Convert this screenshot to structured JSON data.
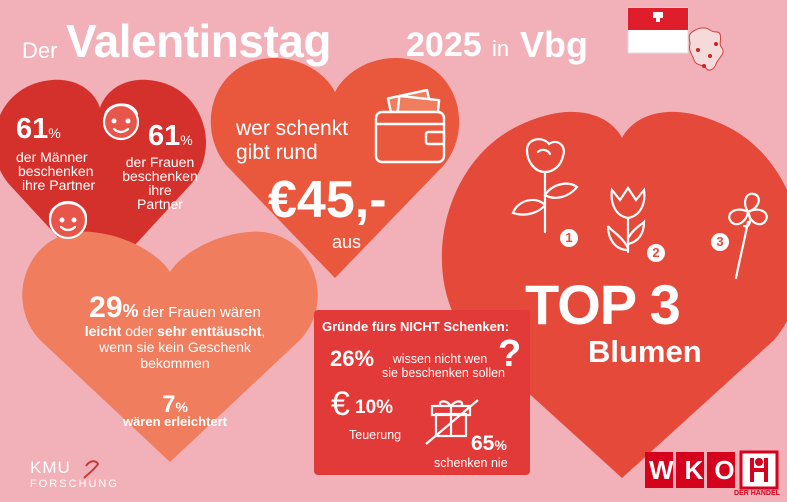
{
  "header": {
    "prefix": "Der",
    "title": "Valentinstag",
    "year": "2025",
    "in": "in",
    "region": "Vbg"
  },
  "heart1": {
    "men_pct": "61",
    "men_pct_sign": "%",
    "men_text": [
      "der Männer",
      "beschenken",
      "ihre Partner"
    ],
    "women_pct": "61",
    "women_pct_sign": "%",
    "women_text": [
      "der Frauen",
      "beschenken",
      "ihre",
      "Partner"
    ]
  },
  "heart2": {
    "line1": "wer schenkt",
    "line2": "gibt rund",
    "amount": "€45,-",
    "suffix": "aus"
  },
  "heart3": {
    "pct": "29",
    "pct_sign": "%",
    "text1": "der Frauen wären",
    "text2a": "leicht",
    "text2b": "oder",
    "text2c": "sehr enttäuscht",
    "text2d": ",",
    "text3": "wenn sie kein Geschenk",
    "text4": "bekommen",
    "pct2": "7",
    "pct2_sign": "%",
    "text5": "wären erleichtert"
  },
  "top3": {
    "title": "TOP 3",
    "subtitle": "Blumen",
    "ranks": [
      "1",
      "2",
      "3"
    ]
  },
  "reasons": {
    "title": "Gründe fürs NICHT Schenken:",
    "r1_pct": "26%",
    "r1_text": [
      "wissen nicht wen",
      "sie beschenken sollen"
    ],
    "r2_pct": "10%",
    "r2_text": "Teuerung",
    "r3_pct": "65",
    "r3_sign": "%",
    "r3_text": "schenken nie"
  },
  "footer": {
    "kmu_line1": "KMU",
    "kmu_line2": "FORSCHUNG",
    "wko": "WKO",
    "wko_sub": "DER HANDEL"
  },
  "colors": {
    "background": "#f2b1b8",
    "heart_red": "#d5312c",
    "heart_orange": "#e9573c",
    "heart_salmon": "#ef7d5e",
    "box_red": "#e23a38",
    "wko_red": "#d4021d"
  }
}
